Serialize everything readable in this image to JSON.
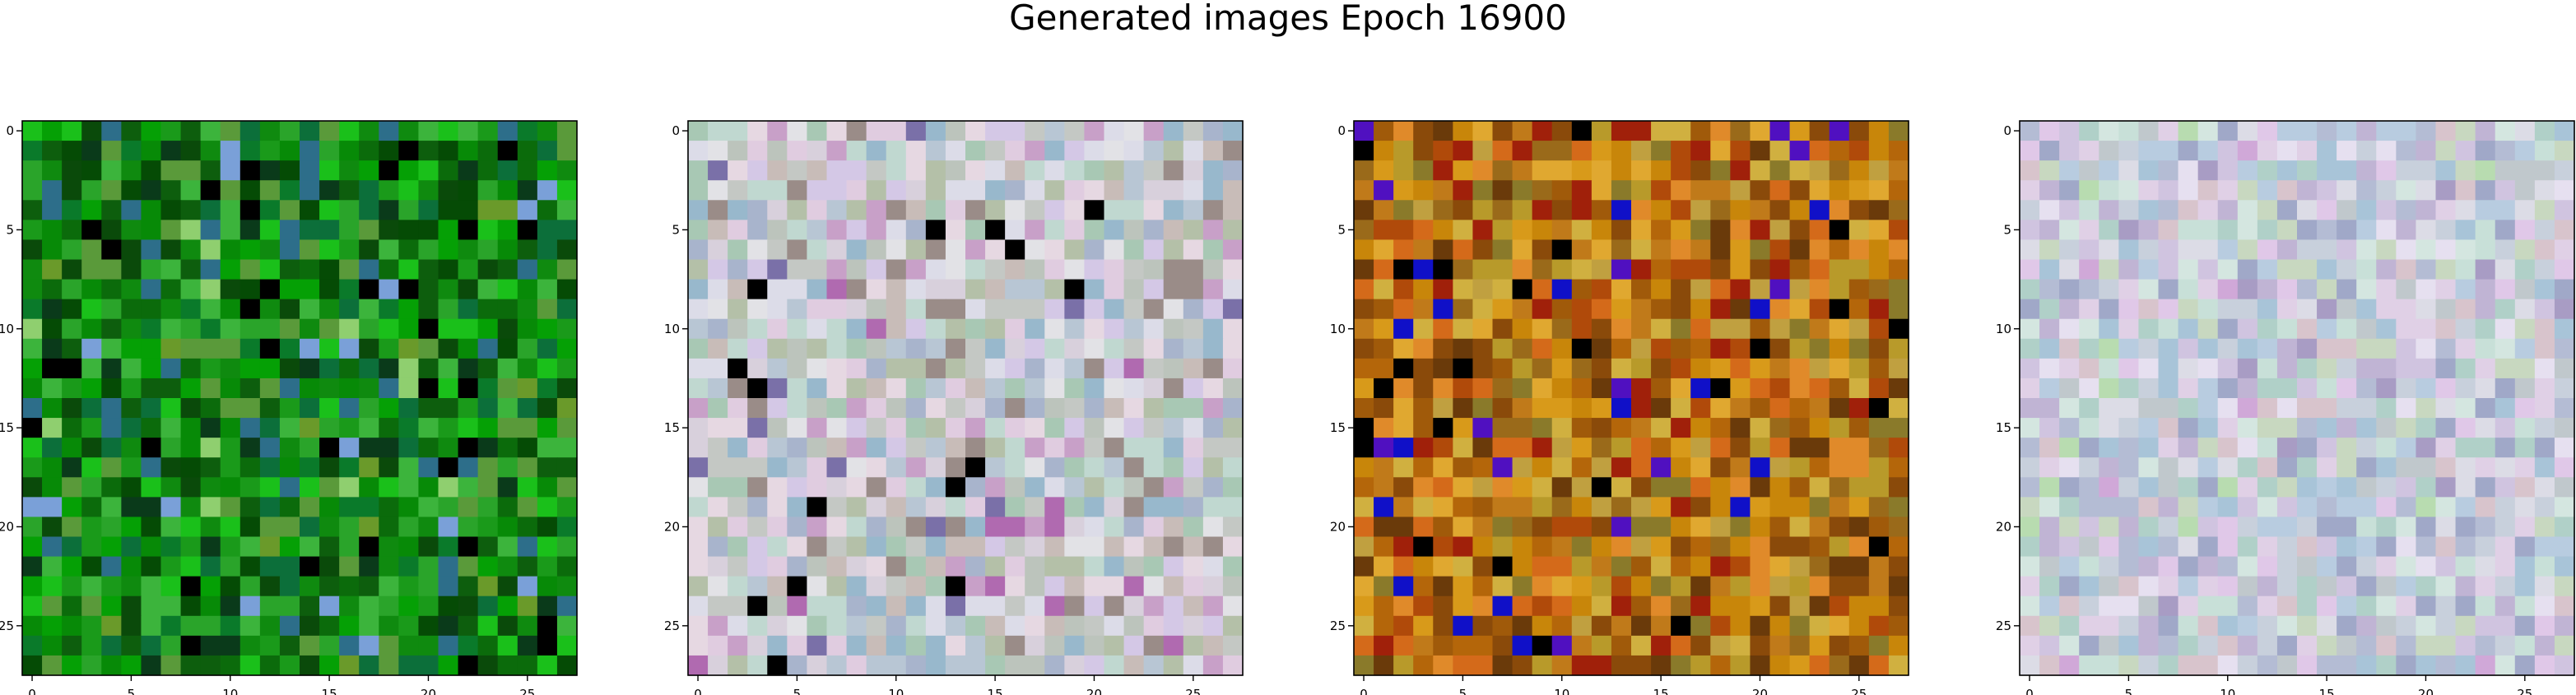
{
  "chart_data": {
    "type": "heatmap",
    "title": "Generated images Epoch 16900",
    "image_size": 28,
    "xticks": [
      0,
      5,
      10,
      15,
      20,
      25
    ],
    "yticks": [
      0,
      5,
      10,
      15,
      20,
      25
    ],
    "xlim": [
      -0.5,
      27.5
    ],
    "ylim": [
      27.5,
      -0.5
    ],
    "panels": [
      {
        "index": 1,
        "palette": [
          "#0b6b0b",
          "#0f8a0f",
          "#078a07",
          "#1a9a1a",
          "#05a005",
          "#0d5e0d",
          "#0a4a0a",
          "#0a7a2a",
          "#2aa42a",
          "#3cb43c",
          "#0a3a1a",
          "#000000",
          "#054b05",
          "#5a9a3a",
          "#1ac01a",
          "#0c6f3a",
          "#2d6e8a",
          "#6a9a2a",
          "#8fcf6f",
          "#7aa0d8"
        ]
      },
      {
        "index": 2,
        "palette": [
          "#c4c8c4",
          "#d8d0dc",
          "#b8c6d4",
          "#e2e2e6",
          "#c8bcb8",
          "#b4c0a8",
          "#d4c8e6",
          "#a8b4cc",
          "#e6d8e2",
          "#c0d8d0",
          "#bcc4bc",
          "#dcdce8",
          "#c8a0c8",
          "#98b8cc",
          "#9a8c88",
          "#a8c8b4",
          "#e0cce0",
          "#7a70a8",
          "#b06ab0",
          "#000000"
        ]
      },
      {
        "index": 3,
        "palette": [
          "#c8860a",
          "#b4660a",
          "#d89a1a",
          "#a05a0a",
          "#e0a830",
          "#8a4a0a",
          "#c07a1a",
          "#b89a2a",
          "#d46a1a",
          "#9a6a1a",
          "#6a3a0a",
          "#c0a040",
          "#e08a2a",
          "#b04a0a",
          "#8a7a2a",
          "#d0b040",
          "#a0200a",
          "#5010c0",
          "#1010c8",
          "#000000"
        ]
      },
      {
        "index": 4,
        "palette": [
          "#d0c4e0",
          "#c8d0dc",
          "#dcdce6",
          "#b8cce0",
          "#c8e0d8",
          "#e0d0e6",
          "#b4bcd4",
          "#d4e6e0",
          "#e6e0f0",
          "#c0b4d4",
          "#a8c4d8",
          "#c8d8c0",
          "#d8c4cc",
          "#b0d0c8",
          "#e0c8e8",
          "#a0a8c8",
          "#c0c8cc",
          "#b8dcb0",
          "#d0a8d8",
          "#a89cc4"
        ]
      }
    ]
  }
}
